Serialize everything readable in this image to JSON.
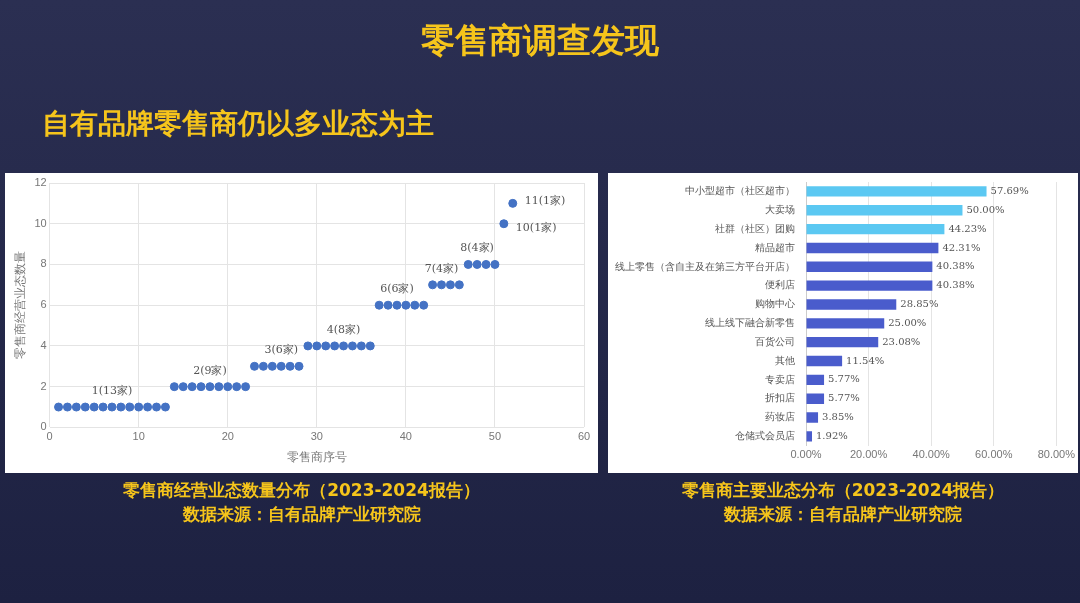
{
  "chart_data": [
    {
      "type": "other",
      "title": "零售商调查发现",
      "subtitle": "自有品牌零售商仍以多业态为主"
    },
    {
      "type": "scatter",
      "title": "零售商经营业态数量分布（2023-2024报告）",
      "xlabel": "零售商序号",
      "ylabel": "零售商经营业态数量",
      "x": [
        1,
        2,
        3,
        4,
        5,
        6,
        7,
        8,
        9,
        10,
        11,
        12,
        13,
        14,
        15,
        16,
        17,
        18,
        19,
        20,
        21,
        22,
        23,
        24,
        25,
        26,
        27,
        28,
        29,
        30,
        31,
        32,
        33,
        34,
        35,
        36,
        37,
        38,
        39,
        40,
        41,
        42,
        43,
        44,
        45,
        46,
        47,
        48,
        49,
        50,
        51,
        52
      ],
      "series": [
        {
          "color": "#4472c4",
          "values": [
            1,
            1,
            1,
            1,
            1,
            1,
            1,
            1,
            1,
            1,
            1,
            1,
            1,
            2,
            2,
            2,
            2,
            2,
            2,
            2,
            2,
            2,
            3,
            3,
            3,
            3,
            3,
            3,
            4,
            4,
            4,
            4,
            4,
            4,
            4,
            4,
            6,
            6,
            6,
            6,
            6,
            6,
            7,
            7,
            7,
            7,
            8,
            8,
            8,
            8,
            10,
            11
          ]
        }
      ],
      "xlim": [
        0,
        60
      ],
      "xticks": [
        0,
        10,
        20,
        30,
        40,
        50,
        60
      ],
      "ylim": [
        0,
        12
      ],
      "yticks": [
        0,
        2,
        4,
        6,
        8,
        10,
        12
      ],
      "grid": true,
      "legend": false,
      "marker": "circle",
      "annotations": [
        {
          "text": "1(13家)",
          "x": 7,
          "y": 1
        },
        {
          "text": "2(9家)",
          "x": 18,
          "y": 2
        },
        {
          "text": "3(6家)",
          "x": 26,
          "y": 3
        },
        {
          "text": "4(8家)",
          "x": 33,
          "y": 4
        },
        {
          "text": "6(6家)",
          "x": 39,
          "y": 6
        },
        {
          "text": "7(4家)",
          "x": 44,
          "y": 7
        },
        {
          "text": "8(4家)",
          "x": 48,
          "y": 8
        },
        {
          "text": "10(1家)",
          "x": 51,
          "y": 10
        },
        {
          "text": "11(1家)",
          "x": 52,
          "y": 11
        },
        "数据来源：自有品牌产业研究院"
      ]
    },
    {
      "type": "bar",
      "orientation": "horizontal",
      "title": "零售商主要业态分布（2023-2024报告）",
      "categories": [
        "中小型超市（社区超市）",
        "大卖场",
        "社群（社区）团购",
        "精品超市",
        "线上零售（含自主及在第三方平台开店）",
        "便利店",
        "购物中心",
        "线上线下融合新零售",
        "百货公司",
        "其他",
        "专卖店",
        "折扣店",
        "药妆店",
        "仓储式会员店"
      ],
      "values": [
        57.69,
        50.0,
        44.23,
        42.31,
        40.38,
        40.38,
        28.85,
        25.0,
        23.08,
        11.54,
        5.77,
        5.77,
        3.85,
        1.92
      ],
      "value_labels": [
        "57.69%",
        "50.00%",
        "44.23%",
        "42.31%",
        "40.38%",
        "40.38%",
        "28.85%",
        "25.00%",
        "23.08%",
        "11.54%",
        "5.77%",
        "5.77%",
        "3.85%",
        "1.92%"
      ],
      "colors": [
        "#5bc8f2",
        "#5bc8f2",
        "#5bc8f2",
        "#4a5ccc",
        "#4a5ccc",
        "#4a5ccc",
        "#4a5ccc",
        "#4a5ccc",
        "#4a5ccc",
        "#4a5ccc",
        "#4a5ccc",
        "#4a5ccc",
        "#4a5ccc",
        "#4a5ccc"
      ],
      "xlim": [
        0,
        80
      ],
      "xticks": [
        {
          "value": 0,
          "label": "0.00%"
        },
        {
          "value": 20,
          "label": "20.00%"
        },
        {
          "value": 40,
          "label": "40.00%"
        },
        {
          "value": 60,
          "label": "60.00%"
        },
        {
          "value": 80,
          "label": "80.00%"
        }
      ],
      "grid": "x",
      "legend": false,
      "annotations": [
        "数据来源：自有品牌产业研究院"
      ]
    }
  ]
}
